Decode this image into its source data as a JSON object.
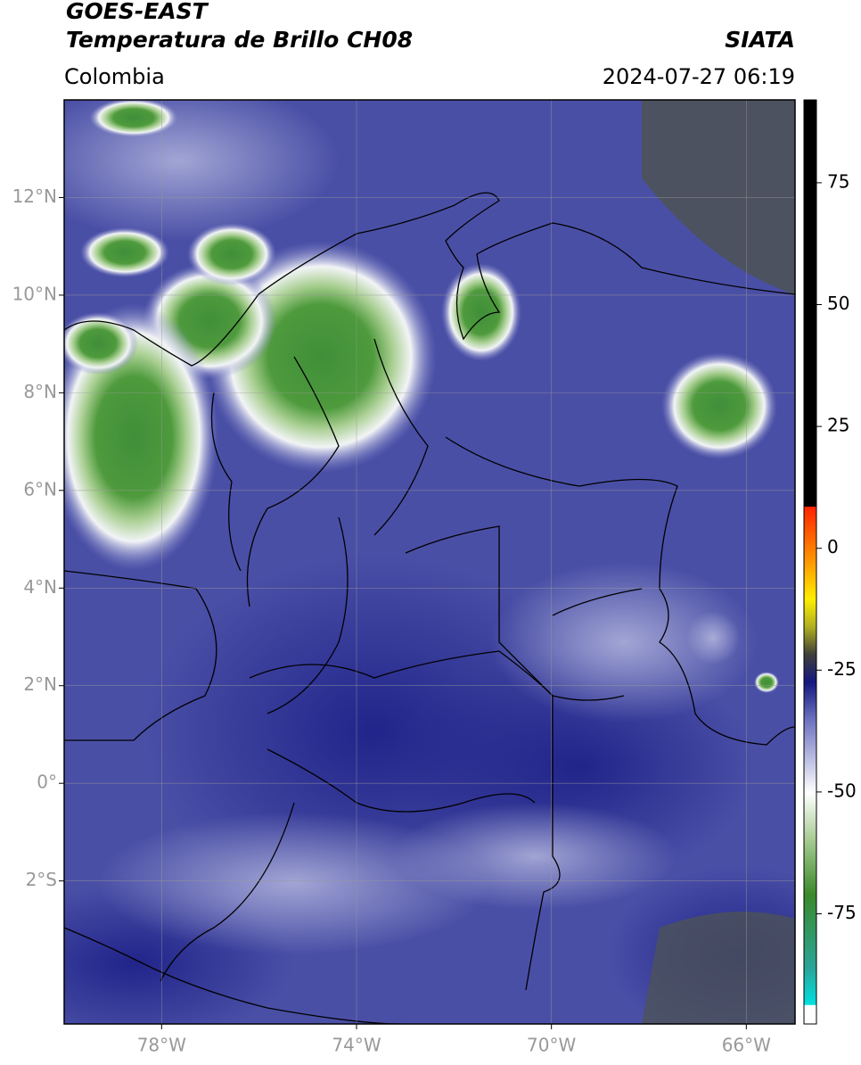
{
  "header": {
    "title": "GOES-EAST",
    "subtitle": "Temperatura de Brillo CH08",
    "source": "SIATA",
    "region": "Colombia",
    "datetime": "2024-07-27 06:19"
  },
  "map": {
    "xlim": [
      -80,
      -65
    ],
    "ylim": [
      -4.93,
      14
    ],
    "xticks": [
      {
        "value": -78,
        "label": "78°W"
      },
      {
        "value": -74,
        "label": "74°W"
      },
      {
        "value": -70,
        "label": "70°W"
      },
      {
        "value": -66,
        "label": "66°W"
      }
    ],
    "yticks": [
      {
        "value": 12,
        "label": "12°N"
      },
      {
        "value": 10,
        "label": "10°N"
      },
      {
        "value": 8,
        "label": "8°N"
      },
      {
        "value": 6,
        "label": "6°N"
      },
      {
        "value": 4,
        "label": "4°N"
      },
      {
        "value": 2,
        "label": "2°N"
      },
      {
        "value": 0,
        "label": "0°"
      },
      {
        "value": -2,
        "label": "2°S"
      }
    ],
    "grid": true
  },
  "colorbar": {
    "lim": [
      -97.6,
      92
    ],
    "ticks": [
      75,
      50,
      25,
      0,
      -25,
      -50,
      -75
    ]
  }
}
